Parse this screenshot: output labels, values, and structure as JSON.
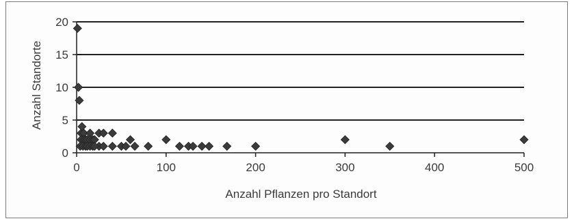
{
  "chart_data": {
    "type": "scatter",
    "title": "",
    "xlabel": "Anzahl Pflanzen pro Standort",
    "ylabel": "Anzahl Standorte",
    "xlim": [
      0,
      500
    ],
    "ylim": [
      0,
      20
    ],
    "xticks": [
      0,
      100,
      200,
      300,
      400,
      500
    ],
    "yticks": [
      0,
      5,
      10,
      15,
      20
    ],
    "grid": "horizontal",
    "legend": "none",
    "marker": "diamond",
    "marker_color": "#3b3b3b",
    "series": [
      {
        "x": [
          1,
          2,
          3,
          5,
          6,
          8,
          10,
          12,
          15,
          18,
          20,
          25,
          30,
          40,
          5,
          8,
          10,
          12,
          15,
          18,
          20,
          25,
          4,
          7,
          10,
          12,
          15,
          18,
          20,
          30,
          40,
          50,
          55,
          60,
          65,
          80,
          100,
          115,
          125,
          130,
          140,
          148,
          168,
          200,
          300,
          350,
          500
        ],
        "y": [
          19,
          10,
          8,
          3,
          4,
          3,
          2,
          2,
          3,
          2,
          2,
          3,
          3,
          3,
          2,
          2,
          2,
          2,
          2,
          2,
          2,
          1,
          1,
          1,
          1,
          1,
          1,
          1,
          1,
          1,
          1,
          1,
          1,
          2,
          1,
          1,
          2,
          1,
          1,
          1,
          1,
          1,
          1,
          1,
          2,
          1,
          2
        ]
      }
    ]
  }
}
